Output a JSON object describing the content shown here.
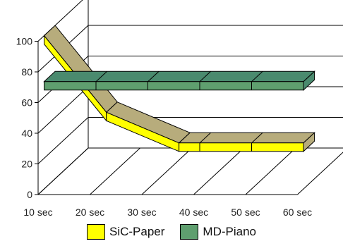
{
  "chart_data": {
    "type": "line",
    "style": "3d-ribbon",
    "categories": [
      "10 sec",
      "20 sec",
      "30 sec",
      "40 sec",
      "50 sec",
      "60 sec"
    ],
    "x": [
      10,
      20,
      30,
      40,
      50,
      60
    ],
    "series": [
      {
        "name": "SiC-Paper",
        "x": [
          10,
          22,
          36,
          60
        ],
        "values": [
          100,
          50,
          30,
          30
        ],
        "color": "#ffff00",
        "top_color": "#b7ac7c"
      },
      {
        "name": "MD-Piano",
        "x": [
          10,
          60
        ],
        "values": [
          70,
          70
        ],
        "color": "#5f9f6f",
        "top_color": "#4a8a6e",
        "segment_ticks": [
          20,
          30,
          40,
          50
        ]
      }
    ],
    "y_ticks": [
      0,
      20,
      40,
      60,
      80,
      100
    ],
    "ylim": [
      0,
      100
    ],
    "xlim": [
      10,
      60
    ],
    "grid": true,
    "legend_position": "bottom"
  }
}
